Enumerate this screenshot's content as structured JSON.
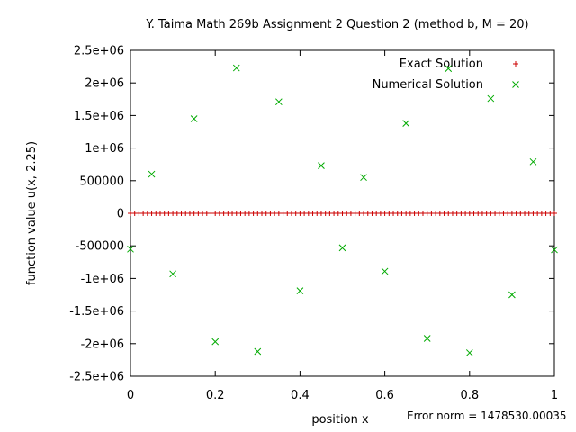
{
  "chart_data": {
    "type": "scatter",
    "title": "Y. Taima Math 269b Assignment 2 Question 2 (method b, M = 20)",
    "xlabel": "position x",
    "ylabel": "function value u(x, 2.25)",
    "xlim": [
      0,
      1
    ],
    "ylim": [
      -2500000,
      2500000
    ],
    "x_ticks": [
      0,
      0.2,
      0.4,
      0.6,
      0.8,
      1
    ],
    "x_tick_labels": [
      "0",
      "0.2",
      "0.4",
      "0.6",
      "0.8",
      "1"
    ],
    "y_ticks": [
      2500000,
      2000000,
      1500000,
      1000000,
      500000,
      0,
      -500000,
      -1000000,
      -1500000,
      -2000000,
      -2500000
    ],
    "y_tick_labels": [
      "2.5e+06",
      "2e+06",
      "1.5e+06",
      "1e+06",
      "500000",
      "0",
      "-500000",
      "-1e+06",
      "-1.5e+06",
      "-2e+06",
      "-2.5e+06"
    ],
    "grid": false,
    "legend_position": "top-right",
    "annotation": "Error norm  = 1478530.00035",
    "colors": {
      "exact": "#cc0000",
      "numerical": "#00aa00",
      "zero_line": "#cc0000"
    },
    "series": [
      {
        "name": "Exact Solution",
        "marker": "plus",
        "x_start": 0,
        "x_end": 1,
        "count": 101,
        "y_constant": 0
      },
      {
        "name": "Numerical Solution",
        "marker": "cross",
        "x": [
          0,
          0.05,
          0.1,
          0.15,
          0.2,
          0.25,
          0.3,
          0.35,
          0.4,
          0.45,
          0.5,
          0.55,
          0.6,
          0.65,
          0.7,
          0.75,
          0.8,
          0.85,
          0.9,
          0.95,
          1
        ],
        "y": [
          -550000,
          600000,
          -930000,
          1450000,
          -1970000,
          2230000,
          -2120000,
          1710000,
          -1190000,
          730000,
          -530000,
          550000,
          -890000,
          1380000,
          -1920000,
          2220000,
          -2140000,
          1760000,
          -1250000,
          790000,
          -560000
        ]
      }
    ]
  }
}
